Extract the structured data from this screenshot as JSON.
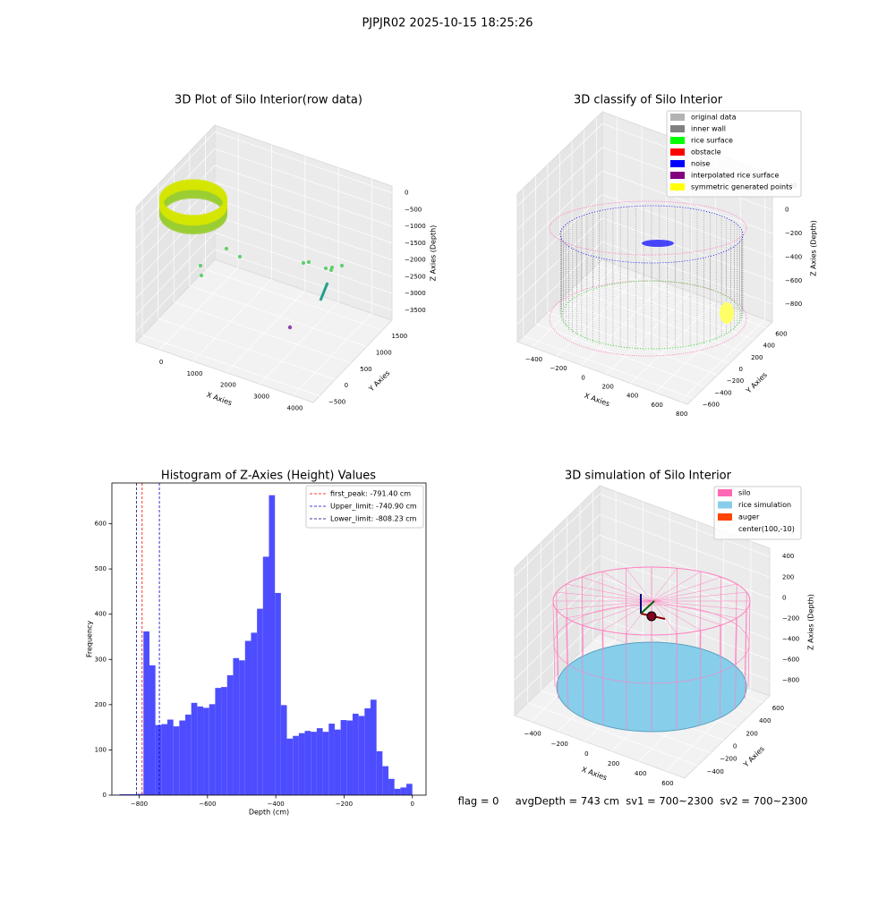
{
  "title": "PJPJR02 2025-10-15 18:25:26",
  "footer": "flag = 0     avgDepth = 743 cm  sv1 = 700~2300  sv2 = 700~2300",
  "chart_data": [
    {
      "type": "scatter3d",
      "title": "3D Plot of Silo Interior(row data)",
      "xlabel": "X Axies",
      "ylabel": "Y Axies",
      "zlabel": "Z Axies (Depth)",
      "xlim": [
        -700,
        4600
      ],
      "ylim": [
        -700,
        1800
      ],
      "zlim": [
        -3800,
        200
      ],
      "xticks": [
        0,
        1000,
        2000,
        3000,
        4000
      ],
      "yticks": [
        {
          "value": -500,
          "label": "−500"
        },
        0,
        500,
        1000,
        1500
      ],
      "zticks": [
        {
          "value": -3500,
          "label": "−3500"
        },
        {
          "value": -3000,
          "label": "−3000"
        },
        {
          "value": -2500,
          "label": "−2500"
        },
        {
          "value": -2000,
          "label": "−2000"
        },
        {
          "value": -1500,
          "label": "−1500"
        },
        {
          "value": -1000,
          "label": "−1000"
        },
        {
          "value": -500,
          "label": "−500"
        },
        0
      ]
    },
    {
      "type": "scatter3d",
      "title": "3D classify of Silo Interior",
      "xlabel": "X Axies",
      "ylabel": "Y Axies",
      "zlabel": "Z Axies (Depth)",
      "xlim": [
        -520,
        860
      ],
      "ylim": [
        -700,
        700
      ],
      "zlim": [
        -950,
        300
      ],
      "xticks": [
        {
          "value": -400,
          "label": "−400"
        },
        {
          "value": -200,
          "label": "−200"
        },
        0,
        200,
        400,
        600,
        800
      ],
      "yticks": [
        {
          "value": -600,
          "label": "−600"
        },
        {
          "value": -400,
          "label": "−400"
        },
        {
          "value": -200,
          "label": "−200"
        },
        0,
        200,
        400,
        600
      ],
      "zticks": [
        {
          "value": -800,
          "label": "−800"
        },
        {
          "value": -600,
          "label": "−600"
        },
        {
          "value": -400,
          "label": "−400"
        },
        {
          "value": -200,
          "label": "−200"
        },
        0,
        200
      ],
      "legend_loc": "upper right",
      "legend": [
        {
          "name": "original data",
          "color": "#b3b3b3"
        },
        {
          "name": "inner wall",
          "color": "#808080"
        },
        {
          "name": "rice surface",
          "color": "#00ff00"
        },
        {
          "name": "obstacle",
          "color": "#ff0000"
        },
        {
          "name": "noise",
          "color": "#0000ff"
        },
        {
          "name": "interpolated rice surface",
          "color": "#800080"
        },
        {
          "name": "symmetric generated points",
          "color": "#ffff00"
        }
      ]
    },
    {
      "type": "histogram",
      "title": "Histogram of Z-Axies (Height) Values",
      "xlabel": "Depth (cm)",
      "ylabel": "Frequency",
      "color": "#4d4dff",
      "xlim": [
        -880,
        40
      ],
      "ylim": [
        0,
        690
      ],
      "xticks": [
        {
          "value": -800,
          "label": "−800"
        },
        {
          "value": -600,
          "label": "−600"
        },
        {
          "value": -400,
          "label": "−400"
        },
        {
          "value": -200,
          "label": "−200"
        },
        0
      ],
      "yticks": [
        0,
        100,
        200,
        300,
        400,
        500,
        600
      ],
      "bins": [
        -875,
        -857.5,
        -840,
        -822.5,
        -805,
        -787.5,
        -770,
        -752.5,
        -735,
        -717.5,
        -700,
        -682.5,
        -665,
        -647.5,
        -630,
        -612.5,
        -595,
        -577.5,
        -560,
        -542.5,
        -525,
        -507.5,
        -490,
        -472.5,
        -455,
        -437.5,
        -420,
        -402.5,
        -385,
        -367.5,
        -350,
        -332.5,
        -315,
        -297.5,
        -280,
        -262.5,
        -245,
        -227.5,
        -210,
        -192.5,
        -175,
        -157.5,
        -140,
        -122.5,
        -105,
        -87.5,
        -70,
        -52.5,
        -35,
        -17.5,
        0
      ],
      "values": [
        1,
        2,
        2,
        2,
        3,
        362,
        287,
        155,
        157,
        167,
        152,
        165,
        178,
        204,
        196,
        193,
        201,
        237,
        239,
        265,
        303,
        298,
        341,
        359,
        412,
        527,
        663,
        447,
        199,
        125,
        131,
        137,
        142,
        140,
        148,
        140,
        158,
        145,
        166,
        165,
        180,
        175,
        192,
        211,
        97,
        64,
        36,
        14,
        17,
        25
      ],
      "legend_loc": "upper right",
      "vlines": [
        {
          "name": "first_peak: -791.40 cm",
          "value": -791.4,
          "color": "#ff0000"
        },
        {
          "name": "Upper_limit: -740.90 cm",
          "value": -740.9,
          "color": "#0000cd"
        },
        {
          "name": "Lower_limit: -808.23 cm",
          "value": -808.23,
          "color": "#000080"
        }
      ]
    },
    {
      "type": "scatter3d",
      "title": "3D simulation of Silo Interior",
      "xlabel": "X Axies",
      "ylabel": "Y Axies",
      "zlabel": "Z Axies (Depth)",
      "xlim": [
        -520,
        740
      ],
      "ylim": [
        -600,
        700
      ],
      "zlim": [
        -950,
        480
      ],
      "xticks": [
        {
          "value": -400,
          "label": "−400"
        },
        {
          "value": -200,
          "label": "−200"
        },
        0,
        200,
        400,
        600
      ],
      "yticks": [
        {
          "value": -400,
          "label": "−400"
        },
        {
          "value": -200,
          "label": "−200"
        },
        0,
        200,
        400,
        600
      ],
      "zticks": [
        {
          "value": -800,
          "label": "−800"
        },
        {
          "value": -600,
          "label": "−600"
        },
        {
          "value": -400,
          "label": "−400"
        },
        {
          "value": -200,
          "label": "−200"
        },
        0,
        200,
        400
      ],
      "legend_loc": "upper right",
      "legend": [
        {
          "name": "silo",
          "color": "#ff69b4"
        },
        {
          "name": "rice simulation",
          "color": "#87ceeb"
        },
        {
          "name": "auger",
          "color": "#ff4500"
        },
        {
          "name": "center(100,-10)"
        }
      ]
    }
  ]
}
